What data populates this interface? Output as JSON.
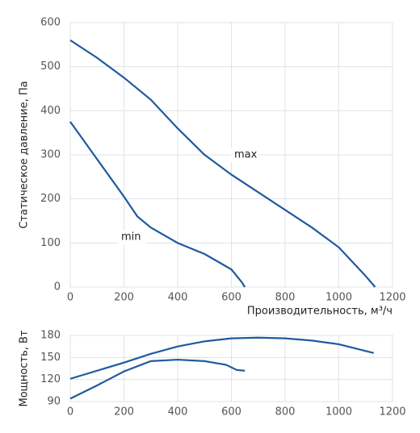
{
  "chart_data": [
    {
      "type": "line",
      "xlabel": "Производительность, м³/ч",
      "ylabel": "Статическое давление, Па",
      "xlim": [
        0,
        1200
      ],
      "xticks": [
        0,
        200,
        400,
        600,
        800,
        1000,
        1200
      ],
      "ylim": [
        0,
        600
      ],
      "yticks": [
        0,
        100,
        200,
        300,
        400,
        500,
        600
      ],
      "grid": true,
      "series": [
        {
          "name": "max",
          "color": "#1f5a9e",
          "x": [
            0,
            100,
            200,
            300,
            400,
            500,
            600,
            700,
            800,
            900,
            1000,
            1100,
            1135
          ],
          "values": [
            560,
            520,
            475,
            425,
            360,
            300,
            255,
            215,
            175,
            135,
            90,
            25,
            0
          ]
        },
        {
          "name": "min",
          "color": "#1f5a9e",
          "x": [
            0,
            100,
            200,
            250,
            300,
            400,
            500,
            600,
            640,
            650
          ],
          "values": [
            375,
            290,
            205,
            160,
            135,
            100,
            75,
            40,
            10,
            0
          ]
        }
      ]
    },
    {
      "type": "line",
      "ylabel": "Мощность, Вт",
      "xlim": [
        0,
        1200
      ],
      "xticks": [
        0,
        200,
        400,
        600,
        800,
        1000,
        1200
      ],
      "ylim": [
        90,
        180
      ],
      "yticks": [
        90,
        120,
        150,
        180
      ],
      "grid": true,
      "series": [
        {
          "color": "#1f5a9e",
          "x": [
            0,
            200,
            300,
            400,
            500,
            600,
            700,
            800,
            900,
            1000,
            1130
          ],
          "values": [
            121,
            143,
            155,
            165,
            172,
            176,
            177,
            176,
            173,
            168,
            156
          ]
        },
        {
          "color": "#1f5a9e",
          "x": [
            0,
            100,
            200,
            300,
            400,
            500,
            580,
            620,
            650
          ],
          "values": [
            94,
            112,
            131,
            145,
            147,
            145,
            140,
            133,
            132
          ]
        }
      ]
    }
  ]
}
